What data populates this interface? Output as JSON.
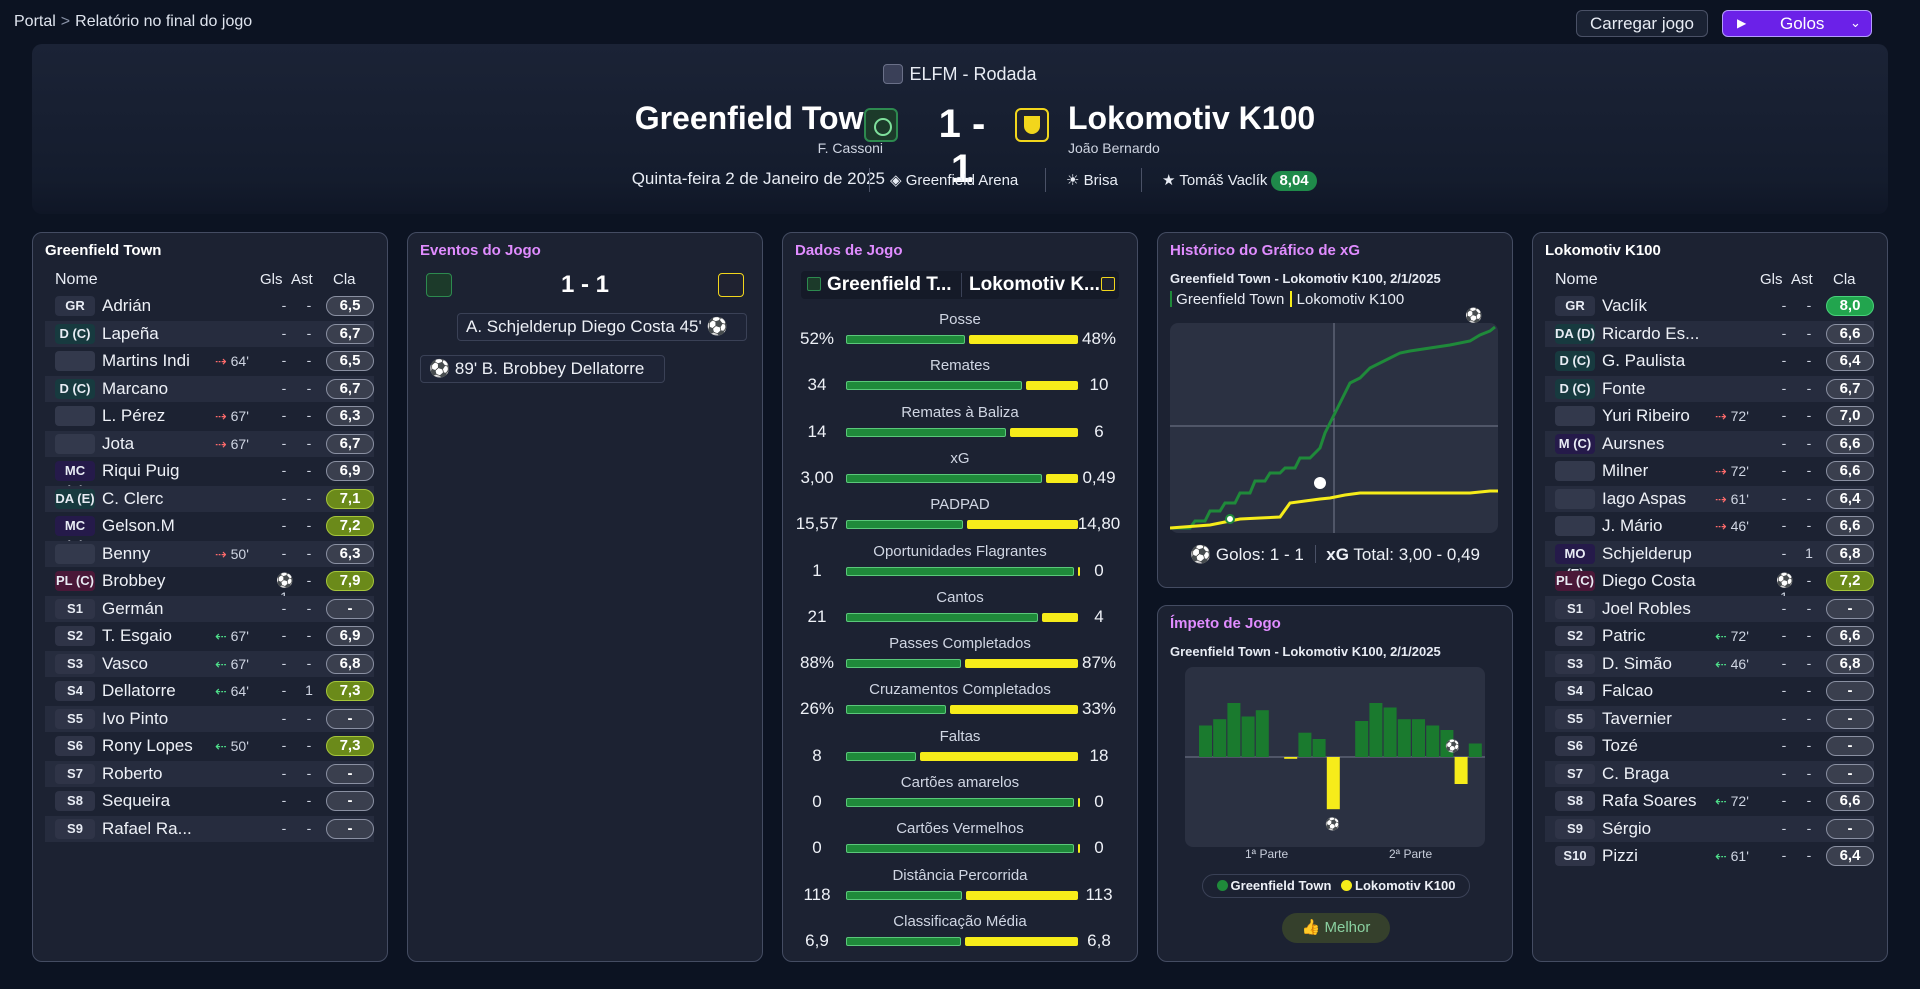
{
  "breadcrumb": {
    "root": "Portal",
    "current": "Relatório no final do jogo"
  },
  "toolbar": {
    "load_label": "Carregar jogo",
    "goals_label": "Golos"
  },
  "match": {
    "competition": "ELFM - Rodada",
    "home": "Greenfield Town",
    "home_manager": "F. Cassoni",
    "away": "Lokomotiv K100",
    "away_manager": "João Bernardo",
    "score": "1 - 1",
    "date": "Quinta-feira 2 de Janeiro de 2025",
    "stadium": "Greenfield Arena",
    "weather": "Brisa",
    "motm_name": "Tomáš Vaclík",
    "motm_rating": "8,04"
  },
  "home_panel": {
    "title": "Greenfield Town",
    "cols": {
      "name": "Nome",
      "gls": "Gls",
      "ast": "Ast",
      "cla": "Cla"
    },
    "players": [
      {
        "pos": "GR",
        "name": "Adrián",
        "sub": "",
        "gls": "-",
        "ast": "-",
        "cla": "6,5"
      },
      {
        "pos": "D (C)",
        "name": "Lapeña",
        "sub": "",
        "gls": "-",
        "ast": "-",
        "cla": "6,7"
      },
      {
        "pos": "",
        "name": "Martins Indi",
        "sub": "64'",
        "gls": "-",
        "ast": "-",
        "cla": "6,5"
      },
      {
        "pos": "D (C)",
        "name": "Marcano",
        "sub": "",
        "gls": "-",
        "ast": "-",
        "cla": "6,7"
      },
      {
        "pos": "",
        "name": "L. Pérez",
        "sub": "67'",
        "gls": "-",
        "ast": "-",
        "cla": "6,3"
      },
      {
        "pos": "",
        "name": "Jota",
        "sub": "67'",
        "gls": "-",
        "ast": "-",
        "cla": "6,7"
      },
      {
        "pos": "MC (C)",
        "name": "Riqui Puig",
        "sub": "",
        "gls": "-",
        "ast": "-",
        "cla": "6,9"
      },
      {
        "pos": "DA (E)",
        "name": "C. Clerc",
        "sub": "",
        "gls": "-",
        "ast": "-",
        "cla": "7,1"
      },
      {
        "pos": "MC (D)",
        "name": "Gelson.M",
        "sub": "",
        "gls": "-",
        "ast": "-",
        "cla": "7,2"
      },
      {
        "pos": "",
        "name": "Benny",
        "sub": "50'",
        "gls": "-",
        "ast": "-",
        "cla": "6,3"
      },
      {
        "pos": "PL (C)",
        "name": "Brobbey",
        "sub": "",
        "gls": "⚽1",
        "ast": "-",
        "cla": "7,9"
      },
      {
        "pos": "S1",
        "name": "Germán",
        "sub": "",
        "gls": "-",
        "ast": "-",
        "cla": "-"
      },
      {
        "pos": "S2",
        "name": "T. Esgaio",
        "sub": "67'",
        "gls": "-",
        "ast": "-",
        "cla": "6,9"
      },
      {
        "pos": "S3",
        "name": "Vasco",
        "sub": "67'",
        "gls": "-",
        "ast": "-",
        "cla": "6,8"
      },
      {
        "pos": "S4",
        "name": "Dellatorre",
        "sub": "64'",
        "gls": "-",
        "ast": "1",
        "cla": "7,3"
      },
      {
        "pos": "S5",
        "name": "Ivo Pinto",
        "sub": "",
        "gls": "-",
        "ast": "-",
        "cla": "-"
      },
      {
        "pos": "S6",
        "name": "Rony Lopes",
        "sub": "50'",
        "gls": "-",
        "ast": "-",
        "cla": "7,3"
      },
      {
        "pos": "S7",
        "name": "Roberto",
        "sub": "",
        "gls": "-",
        "ast": "-",
        "cla": "-"
      },
      {
        "pos": "S8",
        "name": "Sequeira",
        "sub": "",
        "gls": "-",
        "ast": "-",
        "cla": "-"
      },
      {
        "pos": "S9",
        "name": "Rafael Ra...",
        "sub": "",
        "gls": "-",
        "ast": "-",
        "cla": "-"
      }
    ]
  },
  "events_panel": {
    "title": "Eventos do Jogo",
    "score": "1 - 1",
    "events": [
      {
        "text": "A. Schjelderup  Diego Costa 45'"
      },
      {
        "text": "89'  B. Brobbey  Dellatorre"
      }
    ]
  },
  "stats_panel": {
    "title": "Dados de Jogo",
    "tab_home": "Greenfield T...",
    "tab_away": "Lokomotiv K...",
    "stats": [
      {
        "label": "Posse",
        "home": "52%",
        "away": "48%",
        "h": 52,
        "a": 48
      },
      {
        "label": "Remates",
        "home": "34",
        "away": "10",
        "h": 34,
        "a": 10
      },
      {
        "label": "Remates à Baliza",
        "home": "14",
        "away": "6",
        "h": 14,
        "a": 6
      },
      {
        "label": "xG",
        "home": "3,00",
        "away": "0,49",
        "h": 3.0,
        "a": 0.49
      },
      {
        "label": "PADPAD",
        "home": "15,57",
        "away": "14,80",
        "h": 15.57,
        "a": 14.8
      },
      {
        "label": "Oportunidades Flagrantes",
        "home": "1",
        "away": "0",
        "h": 1,
        "a": 0
      },
      {
        "label": "Cantos",
        "home": "21",
        "away": "4",
        "h": 21,
        "a": 4
      },
      {
        "label": "Passes Completados",
        "home": "88%",
        "away": "87%",
        "h": 88,
        "a": 87
      },
      {
        "label": "Cruzamentos Completados",
        "home": "26%",
        "away": "33%",
        "h": 26,
        "a": 33
      },
      {
        "label": "Faltas",
        "home": "8",
        "away": "18",
        "h": 8,
        "a": 18
      },
      {
        "label": "Cartões amarelos",
        "home": "0",
        "away": "0",
        "h": 0,
        "a": 0
      },
      {
        "label": "Cartões Vermelhos",
        "home": "0",
        "away": "0",
        "h": 0,
        "a": 0
      },
      {
        "label": "Distância Percorrida",
        "home": "118",
        "away": "113",
        "h": 118,
        "a": 113
      },
      {
        "label": "Classificação Média",
        "home": "6,9",
        "away": "6,8",
        "h": 6.9,
        "a": 6.8
      }
    ]
  },
  "xg_panel": {
    "title": "Histórico do Gráfico de xG",
    "subtitle": "Greenfield Town - Lokomotiv K100, 2/1/2025",
    "legend_home": "Greenfield Town",
    "legend_away": "Lokomotiv K100",
    "goals_label": "Golos: 1 - 1",
    "xg_label": "xG",
    "xg_total": "Total:  3,00  - 0,49"
  },
  "momentum_panel": {
    "title": "Ímpeto de Jogo",
    "subtitle": "Greenfield Town - Lokomotiv K100, 2/1/2025",
    "first_half": "1ª Parte",
    "second_half": "2ª Parte",
    "legend_home": "Greenfield Town",
    "legend_away": "Lokomotiv K100",
    "best_label": "Melhor",
    "home_bars": [
      0.35,
      0.42,
      0.6,
      0.45,
      0.52,
      0,
      0,
      0.27,
      0.2,
      0,
      0,
      0.4,
      0.6,
      0.55,
      0.42,
      0.42,
      0.35,
      0.3,
      0,
      0.15
    ],
    "away_bars": [
      0,
      0,
      0,
      0,
      0,
      0,
      0.02,
      0,
      0,
      0.58,
      0,
      0,
      0,
      0,
      0,
      0,
      0,
      0,
      0.3,
      0
    ]
  },
  "away_panel": {
    "title": "Lokomotiv K100",
    "cols": {
      "name": "Nome",
      "gls": "Gls",
      "ast": "Ast",
      "cla": "Cla"
    },
    "players": [
      {
        "pos": "GR",
        "name": "Vaclík",
        "sub": "",
        "gls": "-",
        "ast": "-",
        "cla": "8,0"
      },
      {
        "pos": "DA (D)",
        "name": "Ricardo Es...",
        "sub": "",
        "gls": "-",
        "ast": "-",
        "cla": "6,6"
      },
      {
        "pos": "D (C)",
        "name": "G. Paulista",
        "sub": "",
        "gls": "-",
        "ast": "-",
        "cla": "6,4"
      },
      {
        "pos": "D (C)",
        "name": "Fonte",
        "sub": "",
        "gls": "-",
        "ast": "-",
        "cla": "6,7"
      },
      {
        "pos": "",
        "name": "Yuri Ribeiro",
        "sub": "72'",
        "gls": "-",
        "ast": "-",
        "cla": "7,0"
      },
      {
        "pos": "M (C)",
        "name": "Aursnes",
        "sub": "",
        "gls": "-",
        "ast": "-",
        "cla": "6,6"
      },
      {
        "pos": "",
        "name": "Milner",
        "sub": "72'",
        "gls": "-",
        "ast": "-",
        "cla": "6,6"
      },
      {
        "pos": "",
        "name": "Iago Aspas",
        "sub": "61'",
        "gls": "-",
        "ast": "-",
        "cla": "6,4"
      },
      {
        "pos": "",
        "name": "J. Mário",
        "sub": "46'",
        "gls": "-",
        "ast": "-",
        "cla": "6,6"
      },
      {
        "pos": "MO (E)",
        "name": "Schjelderup",
        "sub": "",
        "gls": "-",
        "ast": "1",
        "cla": "6,8"
      },
      {
        "pos": "PL (C)",
        "name": "Diego Costa",
        "sub": "",
        "gls": "⚽1",
        "ast": "-",
        "cla": "7,2"
      },
      {
        "pos": "S1",
        "name": "Joel Robles",
        "sub": "",
        "gls": "-",
        "ast": "-",
        "cla": "-"
      },
      {
        "pos": "S2",
        "name": "Patric",
        "sub": "72'",
        "gls": "-",
        "ast": "-",
        "cla": "6,6"
      },
      {
        "pos": "S3",
        "name": "D. Simão",
        "sub": "46'",
        "gls": "-",
        "ast": "-",
        "cla": "6,8"
      },
      {
        "pos": "S4",
        "name": "Falcao",
        "sub": "",
        "gls": "-",
        "ast": "-",
        "cla": "-"
      },
      {
        "pos": "S5",
        "name": "Tavernier",
        "sub": "",
        "gls": "-",
        "ast": "-",
        "cla": "-"
      },
      {
        "pos": "S6",
        "name": "Tozé",
        "sub": "",
        "gls": "-",
        "ast": "-",
        "cla": "-"
      },
      {
        "pos": "S7",
        "name": "C. Braga",
        "sub": "",
        "gls": "-",
        "ast": "-",
        "cla": "-"
      },
      {
        "pos": "S8",
        "name": "Rafa Soares",
        "sub": "72'",
        "gls": "-",
        "ast": "-",
        "cla": "6,6"
      },
      {
        "pos": "S9",
        "name": "Sérgio",
        "sub": "",
        "gls": "-",
        "ast": "-",
        "cla": "-"
      },
      {
        "pos": "S10",
        "name": "Pizzi",
        "sub": "61'",
        "gls": "-",
        "ast": "-",
        "cla": "6,4"
      }
    ]
  },
  "colors": {
    "home": "#1f8a3a",
    "away": "#f6ec1a",
    "accent": "#6b21e8",
    "title_accent": "#e08cff"
  }
}
